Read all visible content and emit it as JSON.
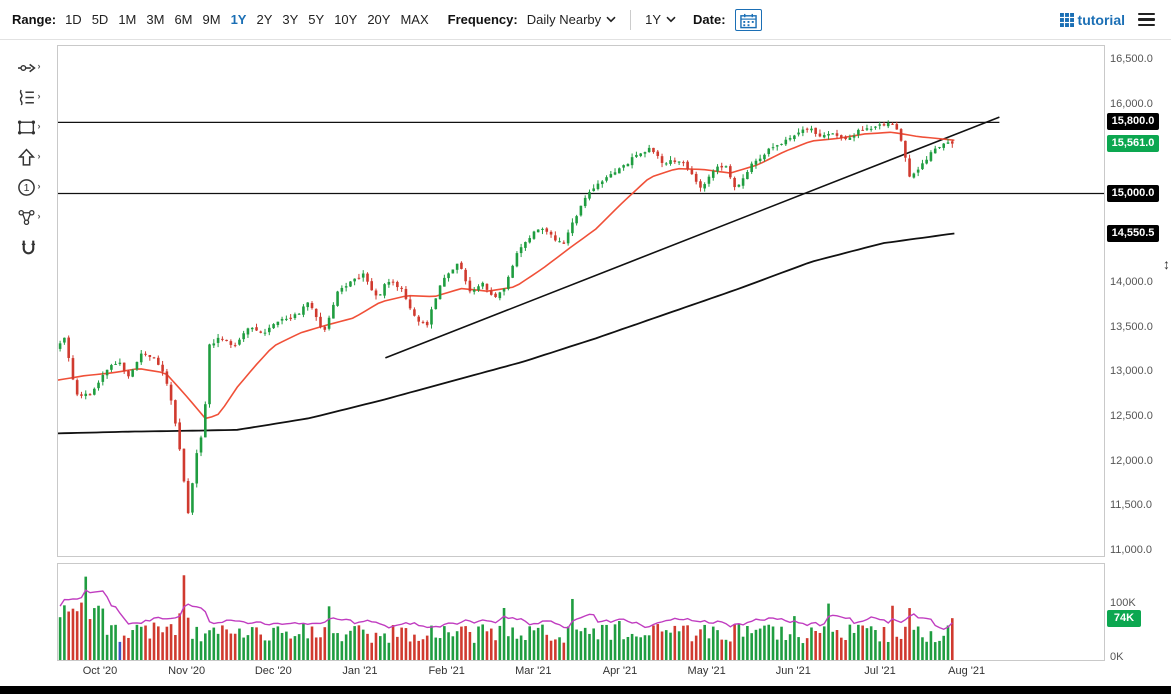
{
  "toolbar": {
    "range_label": "Range:",
    "ranges": [
      "1D",
      "5D",
      "1M",
      "3M",
      "6M",
      "9M",
      "1Y",
      "2Y",
      "3Y",
      "5Y",
      "10Y",
      "20Y",
      "MAX"
    ],
    "active_range": "1Y",
    "frequency_label": "Frequency:",
    "frequency_value": "Daily Nearby",
    "period_value": "1Y",
    "date_label": "Date:",
    "brand": "tutorial",
    "accent_color": "#1b6fb5"
  },
  "sidebar": {
    "tools": [
      {
        "id": "trendline-tool",
        "submenu": true
      },
      {
        "id": "annotation-list-tool",
        "submenu": true
      },
      {
        "id": "rectangle-shape-tool",
        "submenu": true
      },
      {
        "id": "arrow-tool",
        "submenu": true
      },
      {
        "id": "number-label-tool",
        "submenu": true
      },
      {
        "id": "pattern-tool",
        "submenu": true
      },
      {
        "id": "magnet-tool",
        "submenu": false
      }
    ]
  },
  "ui": {
    "resize_handle_glyph": "↕"
  },
  "chart_data": {
    "type": "candlestick",
    "seed": 11,
    "num_candles": 210,
    "data_span_frac": 0.857,
    "y_axis": {
      "top_price": 16660,
      "bottom_price": 10920,
      "ticks": [
        {
          "label": "16,500.0",
          "value": 16500
        },
        {
          "label": "16,000.0",
          "value": 16000
        },
        {
          "label": "14,000.0",
          "value": 14000
        },
        {
          "label": "13,500.0",
          "value": 13500
        },
        {
          "label": "13,000.0",
          "value": 13000
        },
        {
          "label": "12,500.0",
          "value": 12500
        },
        {
          "label": "12,000.0",
          "value": 12000
        },
        {
          "label": "11,500.0",
          "value": 11500
        },
        {
          "label": "11,000.0",
          "value": 11000
        }
      ]
    },
    "x_labels": [
      "Oct '20",
      "Nov '20",
      "Dec '20",
      "Jan '21",
      "Feb '21",
      "Mar '21",
      "Apr '21",
      "May '21",
      "Jun '21",
      "Jul '21",
      "Aug '21"
    ],
    "price_path": [
      [
        0,
        13250
      ],
      [
        0.01,
        13380
      ],
      [
        0.022,
        12750
      ],
      [
        0.04,
        12720
      ],
      [
        0.055,
        13020
      ],
      [
        0.07,
        13120
      ],
      [
        0.082,
        12920
      ],
      [
        0.095,
        13180
      ],
      [
        0.11,
        13150
      ],
      [
        0.122,
        12950
      ],
      [
        0.132,
        12550
      ],
      [
        0.14,
        12050
      ],
      [
        0.148,
        11380
      ],
      [
        0.158,
        12100
      ],
      [
        0.166,
        12400
      ],
      [
        0.172,
        13300
      ],
      [
        0.185,
        13380
      ],
      [
        0.2,
        13280
      ],
      [
        0.215,
        13500
      ],
      [
        0.23,
        13420
      ],
      [
        0.25,
        13560
      ],
      [
        0.268,
        13620
      ],
      [
        0.285,
        13780
      ],
      [
        0.3,
        13420
      ],
      [
        0.315,
        13880
      ],
      [
        0.33,
        14000
      ],
      [
        0.345,
        14100
      ],
      [
        0.36,
        13820
      ],
      [
        0.372,
        14020
      ],
      [
        0.388,
        13920
      ],
      [
        0.402,
        13620
      ],
      [
        0.415,
        13500
      ],
      [
        0.428,
        13900
      ],
      [
        0.44,
        14120
      ],
      [
        0.452,
        14230
      ],
      [
        0.465,
        13880
      ],
      [
        0.478,
        13980
      ],
      [
        0.49,
        13820
      ],
      [
        0.502,
        13900
      ],
      [
        0.515,
        14300
      ],
      [
        0.528,
        14480
      ],
      [
        0.542,
        14630
      ],
      [
        0.555,
        14520
      ],
      [
        0.568,
        14420
      ],
      [
        0.582,
        14720
      ],
      [
        0.597,
        15000
      ],
      [
        0.615,
        15180
      ],
      [
        0.635,
        15300
      ],
      [
        0.652,
        15440
      ],
      [
        0.666,
        15500
      ],
      [
        0.68,
        15350
      ],
      [
        0.7,
        15380
      ],
      [
        0.712,
        15250
      ],
      [
        0.724,
        15040
      ],
      [
        0.738,
        15280
      ],
      [
        0.75,
        15330
      ],
      [
        0.763,
        15040
      ],
      [
        0.778,
        15300
      ],
      [
        0.793,
        15440
      ],
      [
        0.81,
        15560
      ],
      [
        0.828,
        15640
      ],
      [
        0.845,
        15750
      ],
      [
        0.858,
        15620
      ],
      [
        0.872,
        15690
      ],
      [
        0.885,
        15600
      ],
      [
        0.898,
        15690
      ],
      [
        0.912,
        15740
      ],
      [
        0.925,
        15780
      ],
      [
        0.938,
        15800
      ],
      [
        0.948,
        15600
      ],
      [
        0.958,
        15160
      ],
      [
        0.97,
        15300
      ],
      [
        0.984,
        15500
      ],
      [
        1,
        15561
      ]
    ],
    "ma_fast": {
      "color": "#f05038",
      "points": [
        [
          0,
          12900
        ],
        [
          0.03,
          12950
        ],
        [
          0.06,
          12980
        ],
        [
          0.09,
          13030
        ],
        [
          0.12,
          12980
        ],
        [
          0.145,
          12700
        ],
        [
          0.165,
          12460
        ],
        [
          0.18,
          12520
        ],
        [
          0.2,
          12820
        ],
        [
          0.22,
          13060
        ],
        [
          0.24,
          13280
        ],
        [
          0.27,
          13430
        ],
        [
          0.3,
          13520
        ],
        [
          0.33,
          13600
        ],
        [
          0.36,
          13780
        ],
        [
          0.39,
          13850
        ],
        [
          0.42,
          13840
        ],
        [
          0.45,
          13930
        ],
        [
          0.48,
          13900
        ],
        [
          0.51,
          13950
        ],
        [
          0.54,
          14150
        ],
        [
          0.57,
          14380
        ],
        [
          0.6,
          14600
        ],
        [
          0.63,
          14900
        ],
        [
          0.66,
          15180
        ],
        [
          0.69,
          15280
        ],
        [
          0.72,
          15270
        ],
        [
          0.75,
          15230
        ],
        [
          0.78,
          15320
        ],
        [
          0.81,
          15470
        ],
        [
          0.84,
          15590
        ],
        [
          0.87,
          15620
        ],
        [
          0.9,
          15670
        ],
        [
          0.93,
          15690
        ],
        [
          0.96,
          15640
        ],
        [
          1,
          15600
        ]
      ]
    },
    "ma_slow": {
      "color": "#111111",
      "points": [
        [
          0,
          12300
        ],
        [
          0.08,
          12320
        ],
        [
          0.15,
          12330
        ],
        [
          0.2,
          12340
        ],
        [
          0.28,
          12470
        ],
        [
          0.36,
          12670
        ],
        [
          0.44,
          12890
        ],
        [
          0.52,
          13110
        ],
        [
          0.6,
          13370
        ],
        [
          0.68,
          13650
        ],
        [
          0.76,
          13930
        ],
        [
          0.84,
          14230
        ],
        [
          0.92,
          14440
        ],
        [
          1,
          14550.5
        ]
      ]
    },
    "trendline": {
      "x1": 0.313,
      "p1": 13150,
      "x2": 0.9,
      "p2": 15860,
      "color": "#111111"
    },
    "h_lines": [
      {
        "price": 15800,
        "x2": 0.9
      },
      {
        "price": 15000,
        "x2": 1.0
      }
    ],
    "candle_colors": {
      "up": "#1f9d40",
      "down": "#d03a2f"
    },
    "last_price": 15561,
    "price_badges": [
      {
        "name": "prior-price-badge",
        "label": "",
        "price": 15470,
        "bg": "#e5352b"
      },
      {
        "name": "resistance-price-badge",
        "label": "15,800.0",
        "price": 15800,
        "bg": "#000000"
      },
      {
        "name": "last-price-badge",
        "label": "15,561.0",
        "price": 15561,
        "bg": "#0ca750"
      },
      {
        "name": "support-price-badge",
        "label": "15,000.0",
        "price": 15000,
        "bg": "#000000"
      },
      {
        "name": "ma-price-badge",
        "label": "14,550.5",
        "price": 14550.5,
        "bg": "#000000"
      }
    ],
    "volume": {
      "pane_max_k": 170,
      "ticks": [
        {
          "label": "100K",
          "value": 100
        },
        {
          "label": "0K",
          "value": 0
        }
      ],
      "last_k": 74,
      "badge_label": "74K",
      "badge_bg": "#0ca750",
      "ma_color": "#c03cc0",
      "spikes": [
        {
          "t": 0.137,
          "v": 150
        },
        {
          "t": 0.3,
          "v": 95
        },
        {
          "t": 0.575,
          "v": 108
        },
        {
          "t": 0.862,
          "v": 100
        },
        {
          "t": 0.952,
          "v": 92
        }
      ],
      "blue_bar_t": 0.065,
      "blue_color": "#3a55c4"
    }
  }
}
